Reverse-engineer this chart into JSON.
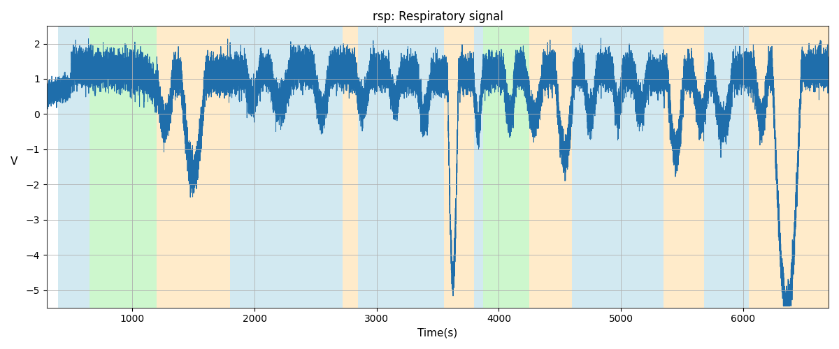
{
  "title": "rsp: Respiratory signal",
  "xlabel": "Time(s)",
  "ylabel": "V",
  "xlim": [
    300,
    6700
  ],
  "ylim": [
    -5.5,
    2.5
  ],
  "signal_color": "#1f6eab",
  "signal_linewidth": 0.7,
  "background_color": "#ffffff",
  "grid_color": "#b0b0b0",
  "yticks": [
    -5,
    -4,
    -3,
    -2,
    -1,
    0,
    1,
    2
  ],
  "xticks": [
    1000,
    2000,
    3000,
    4000,
    5000,
    6000
  ],
  "colored_regions": [
    {
      "xmin": 390,
      "xmax": 650,
      "color": "#add8e6",
      "alpha": 0.55
    },
    {
      "xmin": 650,
      "xmax": 1200,
      "color": "#90ee90",
      "alpha": 0.45
    },
    {
      "xmin": 1200,
      "xmax": 1800,
      "color": "#ffdba0",
      "alpha": 0.55
    },
    {
      "xmin": 1800,
      "xmax": 2720,
      "color": "#add8e6",
      "alpha": 0.55
    },
    {
      "xmin": 2720,
      "xmax": 2850,
      "color": "#ffdba0",
      "alpha": 0.55
    },
    {
      "xmin": 2850,
      "xmax": 3550,
      "color": "#add8e6",
      "alpha": 0.55
    },
    {
      "xmin": 3550,
      "xmax": 3800,
      "color": "#ffdba0",
      "alpha": 0.55
    },
    {
      "xmin": 3800,
      "xmax": 3870,
      "color": "#add8e6",
      "alpha": 0.55
    },
    {
      "xmin": 3870,
      "xmax": 4250,
      "color": "#90ee90",
      "alpha": 0.45
    },
    {
      "xmin": 4250,
      "xmax": 4600,
      "color": "#ffdba0",
      "alpha": 0.55
    },
    {
      "xmin": 4600,
      "xmax": 5350,
      "color": "#add8e6",
      "alpha": 0.55
    },
    {
      "xmin": 5350,
      "xmax": 5680,
      "color": "#ffdba0",
      "alpha": 0.55
    },
    {
      "xmin": 5680,
      "xmax": 6050,
      "color": "#add8e6",
      "alpha": 0.55
    },
    {
      "xmin": 6050,
      "xmax": 6700,
      "color": "#ffdba0",
      "alpha": 0.55
    }
  ],
  "seed": 77
}
